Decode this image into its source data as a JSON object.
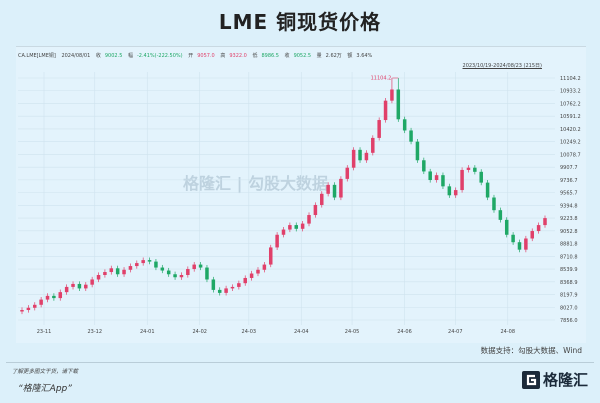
{
  "title": "LME 铜现货价格",
  "info_bar": {
    "symbol": "CA.LME[LME铜]",
    "date": "2024/08/01",
    "close_label": "收",
    "close": "9002.5",
    "change_label": "幅",
    "change": "-2.41%(-222.50%)",
    "open_label": "开",
    "open": "9057.0",
    "high_label": "高",
    "high": "9322.0",
    "low_label": "低",
    "low": "8986.5",
    "settle_label": "收",
    "settle": "9052.5",
    "volume_label": "量",
    "volume": "2.62万",
    "amount_label": "额",
    "amount": "3.64%"
  },
  "range_label": "2023/10/19-2024/08/23 (215日)",
  "watermark": "格隆汇 | 勾股大数据",
  "source": "数据支持：勾股大数据、Wind",
  "footer": {
    "line1": "了解更多图文干货，请下载",
    "line2": "“格隆汇App”",
    "logo_text": "格隆汇"
  },
  "colors": {
    "up": "#e0406a",
    "down": "#1fa866",
    "background": "#dcf0fa"
  },
  "chart_data": {
    "type": "candlestick",
    "start_date": "2023-10-19",
    "end_date": "2024-08-23",
    "ylim": [
      7856.0,
      11104.2
    ],
    "y_ticks": [
      "11104.2",
      "10933.2",
      "10762.2",
      "10591.2",
      "10420.2",
      "10249.2",
      "10078.7",
      "9907.7",
      "9736.7",
      "9565.7",
      "9394.8",
      "9223.8",
      "9052.8",
      "8881.8",
      "8710.8",
      "8539.9",
      "8368.9",
      "8197.9",
      "8027.0",
      "7856.0"
    ],
    "x_ticks": [
      {
        "label": "23-11",
        "date": "2023-11-01"
      },
      {
        "label": "23-12",
        "date": "2023-12-01"
      },
      {
        "label": "24-01",
        "date": "2024-01-01"
      },
      {
        "label": "24-02",
        "date": "2024-02-01"
      },
      {
        "label": "24-03",
        "date": "2024-03-01"
      },
      {
        "label": "24-04",
        "date": "2024-04-01"
      },
      {
        "label": "24-05",
        "date": "2024-05-01"
      },
      {
        "label": "24-06",
        "date": "2024-06-01"
      },
      {
        "label": "24-07",
        "date": "2024-07-01"
      },
      {
        "label": "24-08",
        "date": "2024-08-01"
      }
    ],
    "peak": {
      "value": 11104.2,
      "label": "11104.2"
    },
    "closes": [
      7990,
      8020,
      8060,
      8130,
      8180,
      8150,
      8230,
      8300,
      8340,
      8280,
      8330,
      8400,
      8460,
      8500,
      8550,
      8470,
      8530,
      8580,
      8620,
      8660,
      8640,
      8560,
      8520,
      8470,
      8430,
      8460,
      8540,
      8600,
      8560,
      8400,
      8260,
      8220,
      8280,
      8300,
      8350,
      8420,
      8480,
      8530,
      8600,
      8830,
      9000,
      9070,
      9130,
      9080,
      9150,
      9265,
      9400,
      9550,
      9670,
      9500,
      9750,
      9900,
      10140,
      10000,
      10100,
      10300,
      10540,
      10800,
      10950,
      10550,
      10400,
      10250,
      10000,
      9850,
      9735,
      9800,
      9650,
      9530,
      9600,
      9870,
      9900,
      9845,
      9700,
      9500,
      9330,
      9200,
      9000,
      8900,
      8800,
      8950,
      9050,
      9130,
      9223.8
    ]
  }
}
